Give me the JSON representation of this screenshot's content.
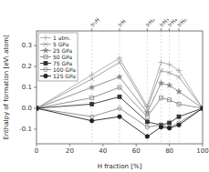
{
  "chart_data": {
    "type": "line",
    "xlabel": "H fraction [%]",
    "ylabel": "Enthalpy of formation [eV\\ atom]",
    "x": [
      0,
      33.33,
      50.0,
      66.67,
      75.0,
      80.0,
      85.71,
      100
    ],
    "series": [
      {
        "name": "1 atm.",
        "color": "#aaaaaa",
        "marker": "plus",
        "values": [
          0,
          0.16,
          0.24,
          0.01,
          0.22,
          0.21,
          0.18,
          0
        ]
      },
      {
        "name": "5 GPa",
        "color": "#999999",
        "marker": "x",
        "values": [
          0,
          0.14,
          0.22,
          0.0,
          0.18,
          0.17,
          0.15,
          0
        ]
      },
      {
        "name": "25 GPa",
        "color": "#888888",
        "marker": "star",
        "values": [
          0,
          0.1,
          0.15,
          -0.02,
          0.12,
          0.11,
          0.08,
          0
        ]
      },
      {
        "name": "50 GPa",
        "color": "#888888",
        "marker": "square-open",
        "values": [
          0,
          0.05,
          0.1,
          -0.04,
          0.05,
          0.04,
          0.02,
          0
        ]
      },
      {
        "name": "75 GPa",
        "color": "#333333",
        "marker": "square",
        "values": [
          0,
          0.02,
          0.055,
          -0.065,
          -0.08,
          -0.07,
          -0.04,
          0
        ]
      },
      {
        "name": "100 GPa",
        "color": "#888888",
        "marker": "circle-open",
        "values": [
          0,
          -0.04,
          0.0,
          -0.09,
          -0.08,
          -0.09,
          -0.07,
          0
        ]
      },
      {
        "name": "125 GPa",
        "color": "#222222",
        "marker": "circle",
        "values": [
          0,
          -0.06,
          -0.04,
          -0.135,
          -0.09,
          -0.095,
          -0.08,
          0
        ]
      }
    ],
    "xlim": [
      0,
      100
    ],
    "ylim": [
      -0.17,
      0.37
    ],
    "xticks": [
      0,
      20,
      40,
      60,
      80,
      100
    ],
    "yticks": [
      -0.1,
      {
        "value": 0.0,
        "label": "0.0"
      },
      0.1,
      0.2,
      0.3
    ],
    "x2ticks": [
      {
        "value": 33.33,
        "label": "Ir₂H"
      },
      {
        "value": 50.0,
        "label": "IrH"
      },
      {
        "value": 66.67,
        "label": "IrH₂"
      },
      {
        "value": 75.0,
        "label": "IrH₃"
      },
      {
        "value": 80.0,
        "label": "IrH₄"
      },
      {
        "value": 85.71,
        "label": "IrH₆"
      }
    ],
    "legend": "upper left"
  }
}
